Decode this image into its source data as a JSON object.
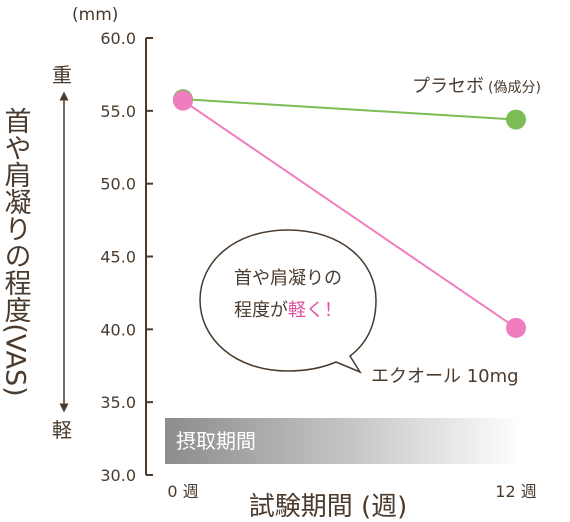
{
  "chart_data": {
    "type": "line",
    "unit": "(mm)",
    "ylabel": "首や肩凝りの程度(VAS)",
    "xlabel": "試験期間 (週)",
    "ylim": [
      30.0,
      60.0
    ],
    "yticks": [
      "60.0",
      "55.0",
      "50.0",
      "45.0",
      "40.0",
      "35.0",
      "30.0"
    ],
    "categories": [
      "0 週",
      "12 週"
    ],
    "scale_top": "重",
    "scale_bottom": "軽",
    "intake_label": "摂取期間",
    "callout": {
      "line1": "首や肩凝りの",
      "line2_pre": "程度が",
      "line2_emph": "軽く！"
    },
    "series": [
      {
        "name": "プラセボ",
        "note": "(偽成分)",
        "values": [
          55.8,
          54.4
        ],
        "color": "#7cbd56"
      },
      {
        "name": "エクオール 10mg",
        "values": [
          55.7,
          40.1
        ],
        "color": "#f07dbe"
      }
    ],
    "colors": {
      "axis": "#4a3b2e",
      "emph": "#e0509f"
    }
  }
}
